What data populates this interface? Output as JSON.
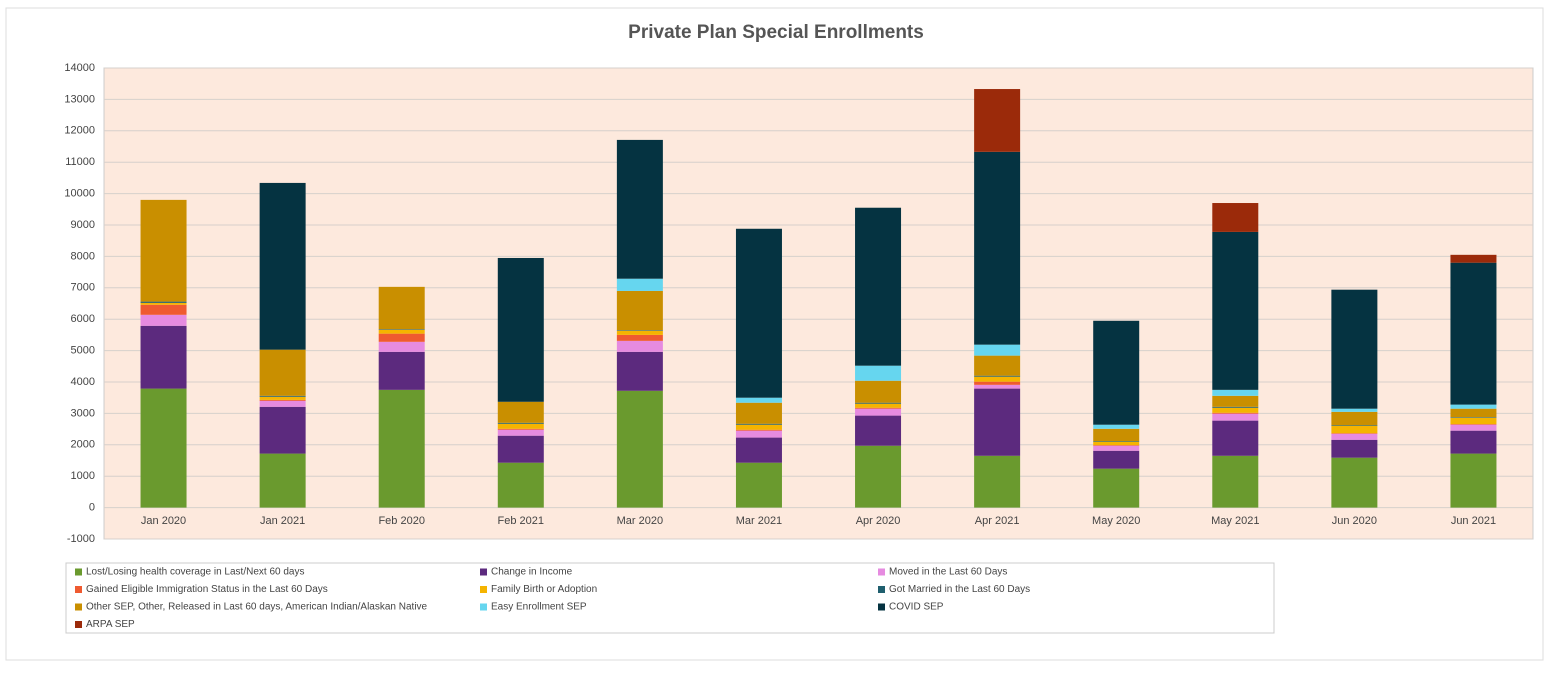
{
  "chart_data": {
    "type": "stacked_bar",
    "title": "Private Plan Special Enrollments",
    "categories": [
      "Jan 2020",
      "Jan 2021",
      "Feb 2020",
      "Feb 2021",
      "Mar 2020",
      "Mar 2021",
      "Apr 2020",
      "Apr 2021",
      "May 2020",
      "May 2021",
      "Jun 2020",
      "Jun 2021"
    ],
    "series": [
      {
        "name": "Lost/Losing health coverage in Last/Next 60 days",
        "color": "#6a9a2e",
        "values": [
          3790,
          1720,
          3750,
          1430,
          3720,
          1430,
          1970,
          1650,
          1240,
          1650,
          1590,
          1720
        ]
      },
      {
        "name": "Change in Income",
        "color": "#5c2a7e",
        "values": [
          2000,
          1490,
          1210,
          860,
          1240,
          800,
          960,
          2140,
          570,
          1120,
          570,
          730
        ]
      },
      {
        "name": "Moved in the Last 60 Days",
        "color": "#e68be0",
        "values": [
          350,
          190,
          320,
          190,
          350,
          220,
          220,
          120,
          160,
          220,
          190,
          190
        ]
      },
      {
        "name": "Gained Eligible Immigration Status in the Last 60 Days",
        "color": "#ef5a30",
        "values": [
          320,
          30,
          260,
          30,
          190,
          30,
          30,
          100,
          20,
          30,
          20,
          20
        ]
      },
      {
        "name": "Family Birth or Adoption",
        "color": "#f5b400",
        "values": [
          60,
          100,
          120,
          160,
          130,
          160,
          130,
          160,
          110,
          160,
          240,
          200
        ]
      },
      {
        "name": "Got Married in the Last 60 Days",
        "color": "#1f5f6e",
        "values": [
          40,
          30,
          20,
          30,
          20,
          30,
          30,
          30,
          20,
          30,
          20,
          20
        ]
      },
      {
        "name": "Other SEP, Other, Released in Last 60 days, American Indian/Alaskan Native",
        "color": "#c98f00",
        "values": [
          3240,
          1470,
          1350,
          670,
          1250,
          670,
          700,
          640,
          390,
          350,
          420,
          270
        ]
      },
      {
        "name": "Easy Enrollment SEP",
        "color": "#66d6ef",
        "values": [
          0,
          0,
          0,
          0,
          390,
          160,
          480,
          350,
          130,
          190,
          100,
          130
        ]
      },
      {
        "name": "COVID SEP",
        "color": "#053341",
        "values": [
          0,
          5310,
          0,
          4580,
          4420,
          5380,
          5030,
          6140,
          3310,
          5030,
          3790,
          4520
        ]
      },
      {
        "name": "ARPA SEP",
        "color": "#9b2a0a",
        "values": [
          0,
          0,
          0,
          0,
          0,
          0,
          0,
          2000,
          0,
          920,
          0,
          250
        ]
      }
    ],
    "ylim": [
      -1000,
      14000
    ],
    "yticks": [
      -1000,
      0,
      1000,
      2000,
      3000,
      4000,
      5000,
      6000,
      7000,
      8000,
      9000,
      10000,
      11000,
      12000,
      13000,
      14000
    ],
    "grid": true
  }
}
